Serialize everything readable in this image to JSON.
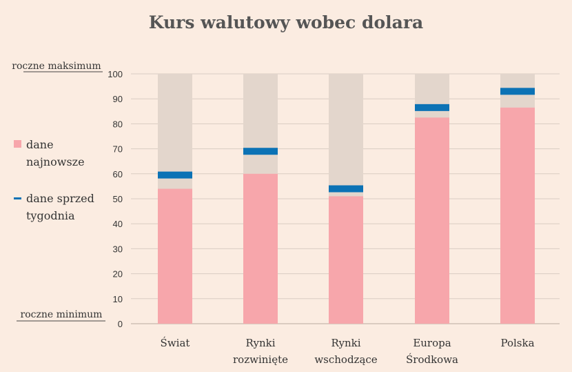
{
  "chart_data": {
    "type": "bar",
    "title": "Kurs walutowy wobec dolara",
    "categories": [
      [
        "Świat"
      ],
      [
        "Rynki",
        "rozwinięte"
      ],
      [
        "Rynki",
        "wschodzące"
      ],
      [
        "Europa",
        "Środkowa"
      ],
      [
        "Polska"
      ]
    ],
    "series": [
      {
        "name": "dane najnowsze",
        "values": [
          54,
          60,
          51,
          82.5,
          86.5
        ],
        "color": "#f7a6ab"
      },
      {
        "name": "dane sprzed tygodnia",
        "values": [
          59.5,
          69,
          54,
          86.5,
          93
        ],
        "color": "#0b72b5"
      }
    ],
    "range_color": "#e3d6cc",
    "ylim": [
      0,
      100
    ],
    "yticks": [
      0,
      10,
      20,
      30,
      40,
      50,
      60,
      70,
      80,
      90,
      100
    ],
    "top_label": "roczne maksimum",
    "bottom_label": "roczne minimum",
    "legend": {
      "latest": [
        "dane",
        "najnowsze"
      ],
      "week_ago": [
        "dane sprzed",
        "tygodnia"
      ]
    },
    "grid": true
  }
}
